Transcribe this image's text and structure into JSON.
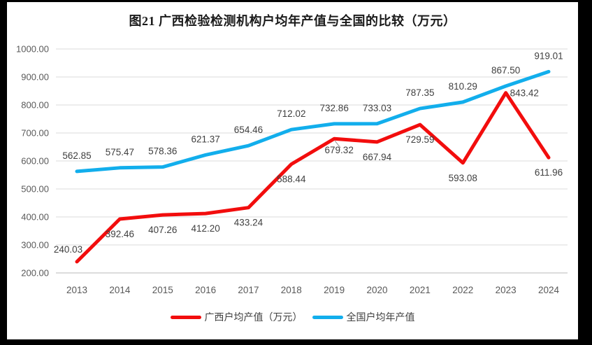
{
  "title": "图21 广西检验检测机构户均年产值与全国的比较（万元）",
  "colors": {
    "frame_border": "#000000",
    "background": "#FFFFFF",
    "grid": "#E2E2E2",
    "axis_line": "#C6C6C6",
    "axis_text": "#595959",
    "data_label": "#3F3F3F",
    "title_text": "#1A1A1A",
    "leader_line": "#A6A6A6"
  },
  "chart_data": {
    "type": "line",
    "title": "图21 广西检验检测机构户均年产值与全国的比较（万元）",
    "x_labels": [
      "2013",
      "2014",
      "2015",
      "2016",
      "2017",
      "2018",
      "2019",
      "2020",
      "2021",
      "2022",
      "2023",
      "2024"
    ],
    "series": [
      {
        "name": "广西户均产值（万元）",
        "color": "#F20D0D",
        "values": [
          240.03,
          392.46,
          407.26,
          412.2,
          433.24,
          588.44,
          679.32,
          667.94,
          729.59,
          593.08,
          843.42,
          611.96
        ],
        "label_positions": [
          "above-left",
          "below",
          "below",
          "below",
          "below",
          "below",
          "below-leader",
          "below",
          "below",
          "below",
          "right",
          "below"
        ]
      },
      {
        "name": "全国户均年产值",
        "color": "#12AEEC",
        "values": [
          562.85,
          575.47,
          578.36,
          621.37,
          654.46,
          712.02,
          732.86,
          733.03,
          787.35,
          810.29,
          867.5,
          919.01
        ],
        "label_positions": "above"
      }
    ],
    "ylim": [
      200,
      1000
    ],
    "ytick_step": 100,
    "ytick_decimals": 2,
    "value_label_decimals": 2,
    "grid": true,
    "legend_position": "bottom",
    "leader_lines": [
      {
        "series": 0,
        "index": 6
      }
    ]
  }
}
